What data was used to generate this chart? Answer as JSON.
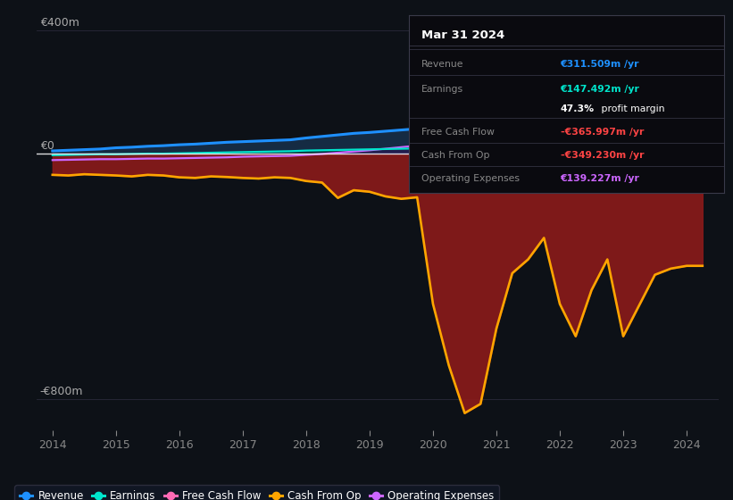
{
  "background_color": "#0d1117",
  "plot_bg_color": "#0d1117",
  "ylabel_top": "€400m",
  "ylabel_zero": "€0",
  "ylabel_bottom": "-€800m",
  "xlim": [
    2013.75,
    2024.5
  ],
  "ylim": [
    -900,
    450
  ],
  "xticks": [
    2014,
    2015,
    2016,
    2017,
    2018,
    2019,
    2020,
    2021,
    2022,
    2023,
    2024
  ],
  "info_box": {
    "date": "Mar 31 2024",
    "rows": [
      {
        "label": "Revenue",
        "value": "€311.509m /yr",
        "value_color": "#1e90ff"
      },
      {
        "label": "Earnings",
        "value": "€147.492m /yr",
        "value_color": "#00e5cc"
      },
      {
        "label": "",
        "value": "47.3% profit margin",
        "value_color": "#ffffff"
      },
      {
        "label": "Free Cash Flow",
        "value": "-€365.997m /yr",
        "value_color": "#ff4444"
      },
      {
        "label": "Cash From Op",
        "value": "-€349.230m /yr",
        "value_color": "#ff4444"
      },
      {
        "label": "Operating Expenses",
        "value": "€139.227m /yr",
        "value_color": "#cc66ff"
      }
    ]
  },
  "legend": [
    {
      "label": "Revenue",
      "color": "#1e90ff"
    },
    {
      "label": "Earnings",
      "color": "#00e5cc"
    },
    {
      "label": "Free Cash Flow",
      "color": "#ff69b4"
    },
    {
      "label": "Cash From Op",
      "color": "#ffa500"
    },
    {
      "label": "Operating Expenses",
      "color": "#cc66ff"
    }
  ],
  "revenue_color": "#1e90ff",
  "revenue_fill": "#1a3a5c",
  "earnings_color": "#00e5cc",
  "earnings_fill": "#003535",
  "fcf_color": "#ffa500",
  "fcf_fill": "#8b1a1a",
  "opex_color": "#cc66ff",
  "opex_fill": "#3a1060",
  "zero_line_color": "#ffffff",
  "grid_color": "#2a2a3a",
  "tick_color": "#888888",
  "label_color": "#aaaaaa",
  "years": [
    2014.0,
    2014.25,
    2014.5,
    2014.75,
    2015.0,
    2015.25,
    2015.5,
    2015.75,
    2016.0,
    2016.25,
    2016.5,
    2016.75,
    2017.0,
    2017.25,
    2017.5,
    2017.75,
    2018.0,
    2018.25,
    2018.5,
    2018.75,
    2019.0,
    2019.25,
    2019.5,
    2019.75,
    2020.0,
    2020.25,
    2020.5,
    2020.75,
    2021.0,
    2021.25,
    2021.5,
    2021.75,
    2022.0,
    2022.25,
    2022.5,
    2022.75,
    2023.0,
    2023.25,
    2023.5,
    2023.75,
    2024.0,
    2024.25
  ],
  "revenue_data": [
    8,
    10,
    12,
    14,
    18,
    20,
    23,
    25,
    28,
    30,
    33,
    36,
    38,
    40,
    42,
    44,
    50,
    55,
    60,
    65,
    68,
    72,
    76,
    80,
    82,
    88,
    95,
    108,
    130,
    155,
    175,
    200,
    218,
    233,
    248,
    260,
    265,
    272,
    283,
    298,
    311,
    311
  ],
  "earnings_data": [
    -6,
    -5,
    -4,
    -3,
    -3,
    -2,
    -1,
    -1,
    0,
    1,
    2,
    3,
    4,
    5,
    6,
    7,
    9,
    10,
    11,
    12,
    13,
    14,
    15,
    16,
    17,
    19,
    24,
    34,
    53,
    73,
    92,
    108,
    118,
    128,
    136,
    140,
    141,
    142,
    144,
    146,
    147,
    147
  ],
  "fcf_data": [
    -70,
    -72,
    -68,
    -70,
    -72,
    -75,
    -70,
    -72,
    -78,
    -80,
    -75,
    -77,
    -80,
    -82,
    -78,
    -80,
    -90,
    -95,
    -145,
    -120,
    -125,
    -140,
    -148,
    -143,
    -490,
    -690,
    -845,
    -815,
    -570,
    -390,
    -345,
    -275,
    -490,
    -595,
    -445,
    -345,
    -595,
    -495,
    -395,
    -375,
    -366,
    -366
  ],
  "cfo_data": [
    -70,
    -72,
    -68,
    -70,
    -72,
    -75,
    -70,
    -72,
    -78,
    -80,
    -75,
    -77,
    -80,
    -82,
    -78,
    -80,
    -90,
    -95,
    -145,
    -120,
    -125,
    -140,
    -148,
    -143,
    -490,
    -690,
    -845,
    -815,
    -570,
    -390,
    -345,
    -275,
    -490,
    -595,
    -445,
    -345,
    -595,
    -495,
    -395,
    -375,
    -349,
    -349
  ],
  "opex_data": [
    -22,
    -21,
    -20,
    -19,
    -19,
    -18,
    -17,
    -17,
    -16,
    -15,
    -14,
    -13,
    -11,
    -10,
    -9,
    -8,
    -5,
    -2,
    2,
    6,
    10,
    15,
    20,
    25,
    30,
    42,
    57,
    72,
    90,
    102,
    112,
    116,
    119,
    121,
    123,
    125,
    128,
    131,
    134,
    137,
    139,
    139
  ]
}
